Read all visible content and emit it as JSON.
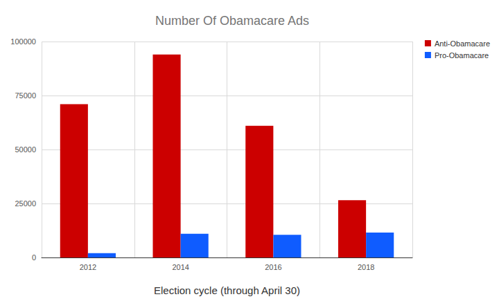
{
  "chart_data": {
    "type": "bar",
    "title": "Number Of Obamacare Ads",
    "x_label": "Election cycle (through April 30)",
    "categories": [
      "2012",
      "2014",
      "2016",
      "2018"
    ],
    "series": [
      {
        "name": "Anti-Obamacare",
        "color": "#cc0000",
        "values": [
          71000,
          94000,
          61000,
          26500
        ]
      },
      {
        "name": "Pro-Obamacare",
        "color": "#0f5cff",
        "values": [
          2000,
          11000,
          10500,
          11500
        ]
      }
    ],
    "ylim": [
      0,
      100000
    ],
    "yticks": [
      0,
      25000,
      50000,
      75000,
      100000
    ],
    "grid": true,
    "legend": "top-right"
  }
}
